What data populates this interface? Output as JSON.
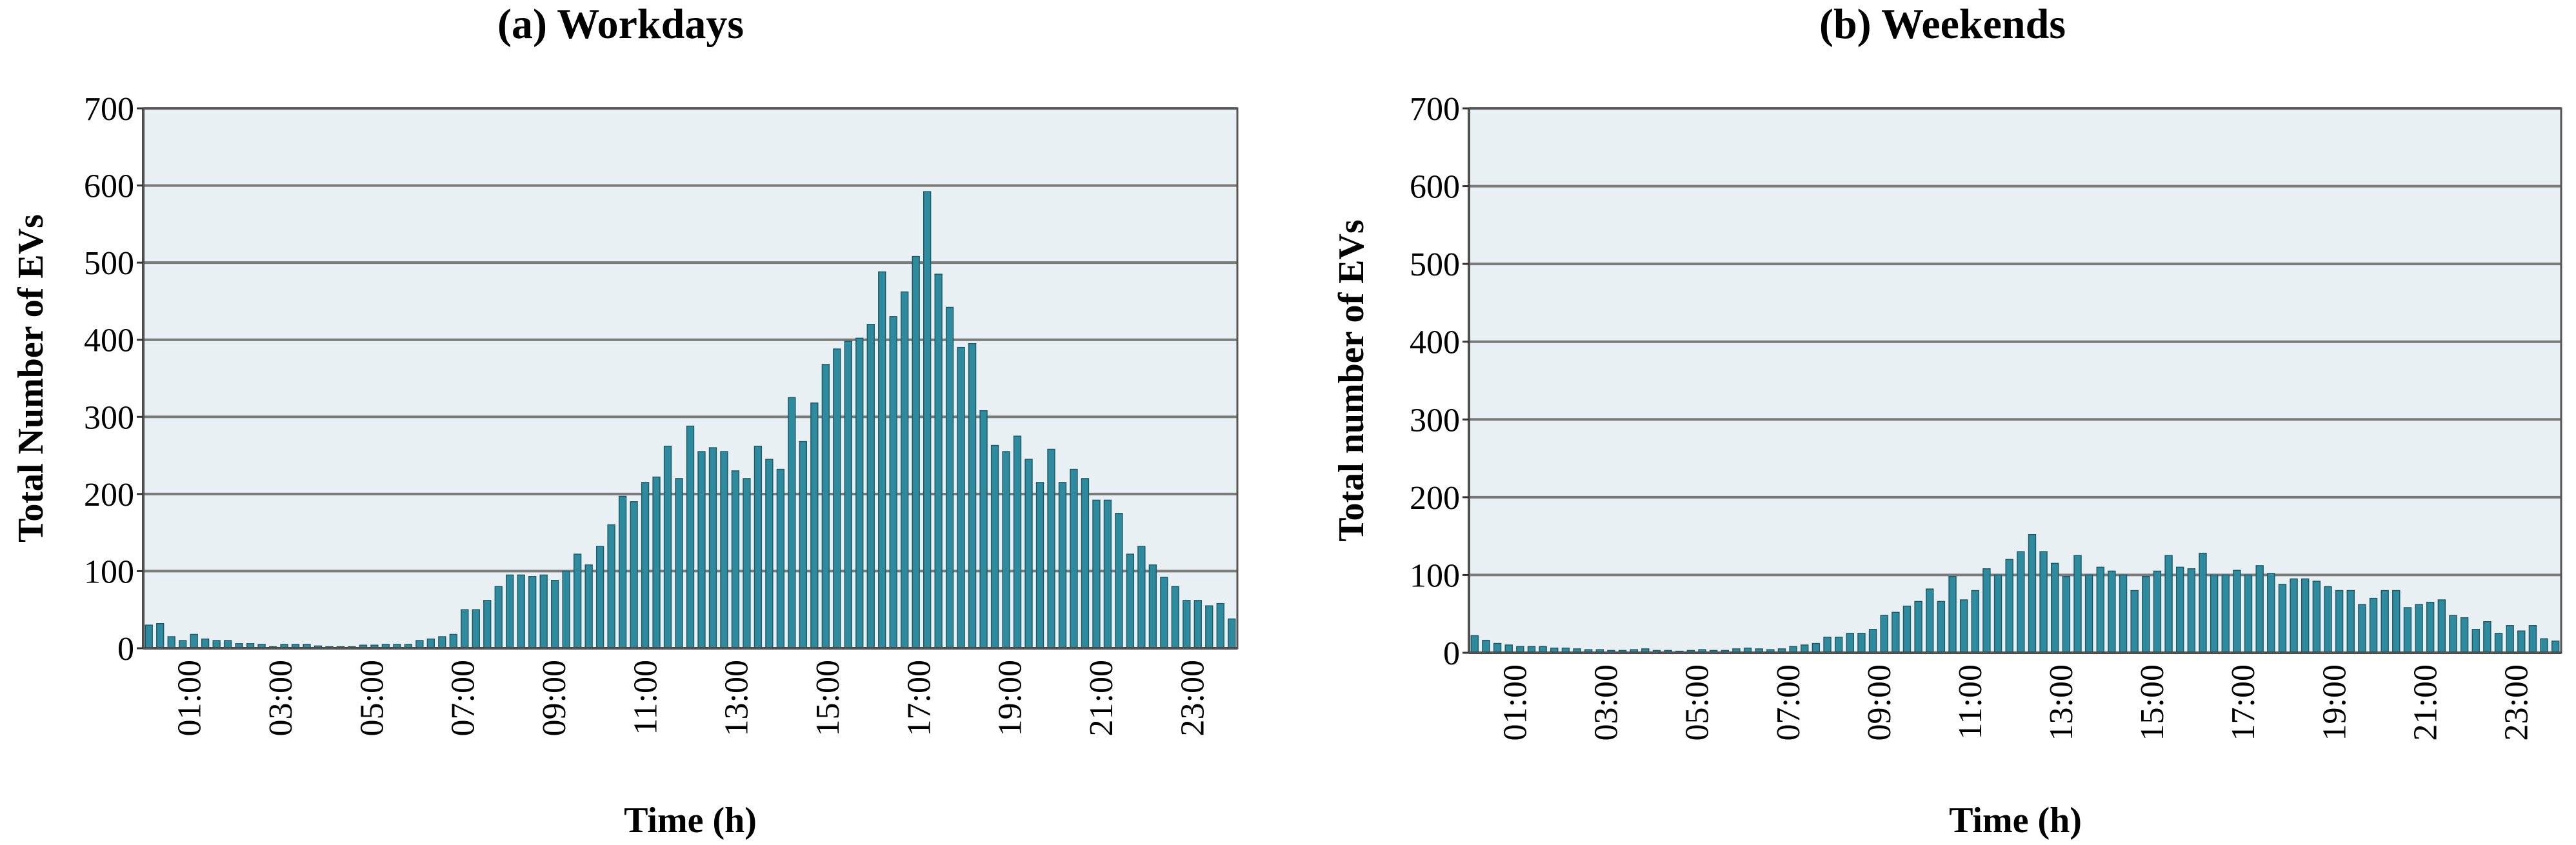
{
  "chart_data": [
    {
      "type": "bar",
      "title": "(a) Workdays",
      "xlabel": "Time (h)",
      "ylabel": "Total Number of EVs",
      "ylim": [
        0,
        700
      ],
      "yticks": [
        0,
        100,
        200,
        300,
        400,
        500,
        600,
        700
      ],
      "xticks": [
        "01:00",
        "03:00",
        "05:00",
        "07:00",
        "09:00",
        "11:00",
        "13:00",
        "15:00",
        "17:00",
        "19:00",
        "21:00",
        "23:00"
      ],
      "bar_color": "#2e8a9c",
      "plot_background": "#e9f0f4",
      "grid": true,
      "values": [
        30,
        32,
        15,
        10,
        18,
        12,
        10,
        10,
        6,
        6,
        5,
        2,
        5,
        5,
        5,
        3,
        2,
        2,
        2,
        4,
        4,
        5,
        5,
        5,
        10,
        12,
        15,
        18,
        50,
        50,
        62,
        80,
        95,
        95,
        93,
        95,
        88,
        100,
        122,
        108,
        132,
        160,
        197,
        190,
        215,
        222,
        262,
        220,
        288,
        255,
        260,
        255,
        230,
        220,
        262,
        245,
        232,
        325,
        268,
        318,
        368,
        388,
        398,
        402,
        420,
        488,
        430,
        462,
        508,
        592,
        485,
        442,
        390,
        395,
        308,
        263,
        255,
        275,
        245,
        215,
        258,
        215,
        232,
        220,
        192,
        192,
        175,
        122,
        132,
        108,
        92,
        80,
        62,
        62,
        55,
        58,
        38
      ]
    },
    {
      "type": "bar",
      "title": "(b) Weekends",
      "xlabel": "Time (h)",
      "ylabel": "Total number of EVs",
      "ylim": [
        0,
        700
      ],
      "yticks": [
        0,
        100,
        200,
        300,
        400,
        500,
        600,
        700
      ],
      "xticks": [
        "01:00",
        "03:00",
        "05:00",
        "07:00",
        "09:00",
        "11:00",
        "13:00",
        "15:00",
        "17:00",
        "19:00",
        "21:00",
        "23:00"
      ],
      "bar_color": "#2e8a9c",
      "plot_background": "#e9f0f4",
      "grid": true,
      "values": [
        22,
        16,
        12,
        10,
        8,
        8,
        8,
        6,
        6,
        5,
        4,
        4,
        3,
        3,
        4,
        5,
        3,
        3,
        2,
        3,
        4,
        3,
        3,
        5,
        6,
        5,
        4,
        5,
        8,
        10,
        12,
        20,
        20,
        25,
        25,
        30,
        48,
        52,
        60,
        66,
        82,
        66,
        98,
        68,
        80,
        108,
        100,
        120,
        130,
        152,
        130,
        115,
        98,
        125,
        100,
        110,
        105,
        100,
        80,
        98,
        105,
        125,
        110,
        108,
        128,
        100,
        100,
        106,
        100,
        112,
        102,
        88,
        95,
        95,
        92,
        85,
        80,
        80,
        62,
        70,
        80,
        80,
        58,
        62,
        65,
        68,
        48,
        45,
        30,
        40,
        25,
        35,
        28,
        35,
        18,
        15
      ]
    }
  ]
}
